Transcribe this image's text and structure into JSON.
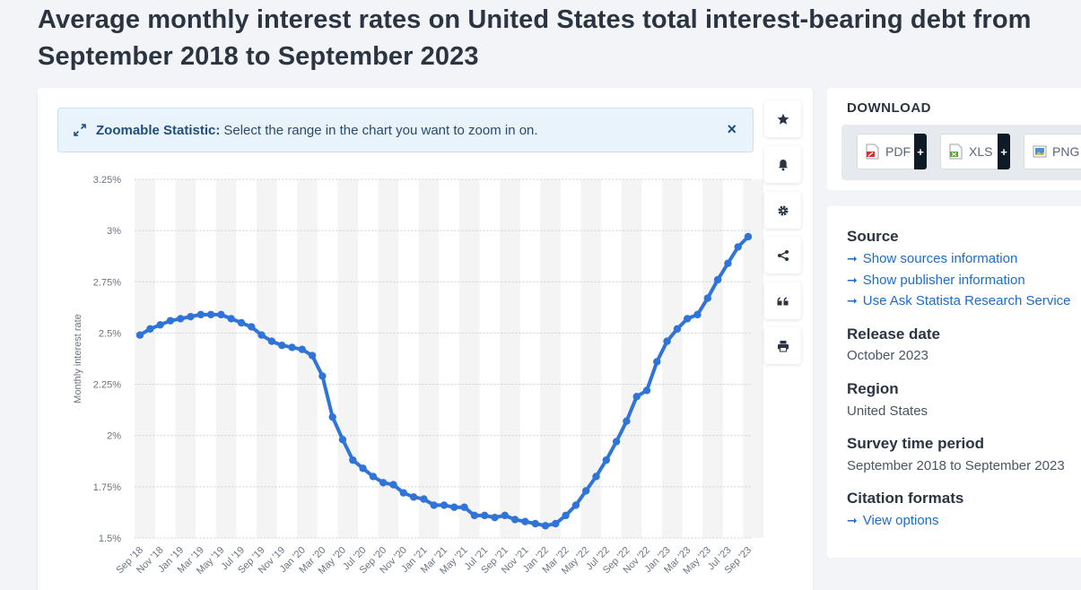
{
  "page": {
    "title": "Average monthly interest rates on United States total interest-bearing debt from September 2018 to September 2023"
  },
  "zoom_banner": {
    "label": "Zoomable Statistic:",
    "text": "Select the range in the chart you want to zoom in on.",
    "close": "×"
  },
  "toolbar": {
    "icons": [
      "star-icon",
      "bell-icon",
      "gear-icon",
      "share-icon",
      "quote-icon",
      "print-icon"
    ]
  },
  "download": {
    "title": "DOWNLOAD",
    "pdf": "PDF",
    "xls": "XLS",
    "png": "PNG",
    "plus": "+"
  },
  "info": {
    "source_heading": "Source",
    "source_links": [
      "Show sources information",
      "Show publisher information",
      "Use Ask Statista Research Service"
    ],
    "release_heading": "Release date",
    "release_value": "October 2023",
    "region_heading": "Region",
    "region_value": "United States",
    "period_heading": "Survey time period",
    "period_value": "September 2018 to September 2023",
    "citation_heading": "Citation formats",
    "citation_link": "View options"
  },
  "colors": {
    "series": "#2f74d6",
    "accent_link": "#1c6dc7"
  },
  "chart_data": {
    "type": "line",
    "title": "",
    "xlabel": "",
    "ylabel": "Monthly interest rate",
    "ylim": [
      1.5,
      3.25
    ],
    "yticks": [
      "1.5%",
      "1.75%",
      "2%",
      "2.25%",
      "2.5%",
      "2.75%",
      "3%",
      "3.25%"
    ],
    "ytick_values": [
      1.5,
      1.75,
      2.0,
      2.25,
      2.5,
      2.75,
      3.0,
      3.25
    ],
    "grid": true,
    "x_tick_labels": [
      "Sep '18",
      "Nov '18",
      "Jan '19",
      "Mar '19",
      "May '19",
      "Jul '19",
      "Sep '19",
      "Nov '19",
      "Jan '20",
      "Mar '20",
      "May '20",
      "Jul '20",
      "Sep '20",
      "Nov '20",
      "Jan '21",
      "Mar '21",
      "May '21",
      "Jul '21",
      "Sep '21",
      "Nov '21",
      "Jan '22",
      "Mar '22",
      "May '22",
      "Jul '22",
      "Sep '22",
      "Nov '22",
      "Jan '23",
      "Mar '23",
      "May '23",
      "Jul '23",
      "Sep '23"
    ],
    "x": [
      "Sep 2018",
      "Oct 2018",
      "Nov 2018",
      "Dec 2018",
      "Jan 2019",
      "Feb 2019",
      "Mar 2019",
      "Apr 2019",
      "May 2019",
      "Jun 2019",
      "Jul 2019",
      "Aug 2019",
      "Sep 2019",
      "Oct 2019",
      "Nov 2019",
      "Dec 2019",
      "Jan 2020",
      "Feb 2020",
      "Mar 2020",
      "Apr 2020",
      "May 2020",
      "Jun 2020",
      "Jul 2020",
      "Aug 2020",
      "Sep 2020",
      "Oct 2020",
      "Nov 2020",
      "Dec 2020",
      "Jan 2021",
      "Feb 2021",
      "Mar 2021",
      "Apr 2021",
      "May 2021",
      "Jun 2021",
      "Jul 2021",
      "Aug 2021",
      "Sep 2021",
      "Oct 2021",
      "Nov 2021",
      "Dec 2021",
      "Jan 2022",
      "Feb 2022",
      "Mar 2022",
      "Apr 2022",
      "May 2022",
      "Jun 2022",
      "Jul 2022",
      "Aug 2022",
      "Sep 2022",
      "Oct 2022",
      "Nov 2022",
      "Dec 2022",
      "Jan 2023",
      "Feb 2023",
      "Mar 2023",
      "Apr 2023",
      "May 2023",
      "Jun 2023",
      "Jul 2023",
      "Aug 2023",
      "Sep 2023"
    ],
    "series": [
      {
        "values": [
          2.49,
          2.52,
          2.54,
          2.56,
          2.57,
          2.58,
          2.59,
          2.59,
          2.59,
          2.57,
          2.55,
          2.53,
          2.49,
          2.46,
          2.44,
          2.43,
          2.42,
          2.39,
          2.29,
          2.09,
          1.98,
          1.88,
          1.84,
          1.8,
          1.77,
          1.76,
          1.72,
          1.7,
          1.69,
          1.66,
          1.66,
          1.65,
          1.65,
          1.61,
          1.61,
          1.6,
          1.61,
          1.59,
          1.58,
          1.57,
          1.56,
          1.57,
          1.61,
          1.66,
          1.73,
          1.8,
          1.88,
          1.97,
          2.07,
          2.19,
          2.22,
          2.36,
          2.46,
          2.52,
          2.57,
          2.59,
          2.67,
          2.76,
          2.84,
          2.92,
          2.97
        ]
      }
    ]
  }
}
